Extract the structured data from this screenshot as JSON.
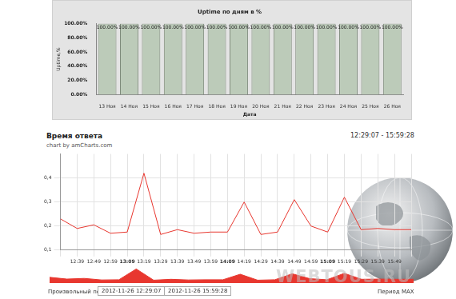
{
  "chart_data": [
    {
      "type": "bar",
      "title": "Uptime по дням в %",
      "x_label": "Дата",
      "y_label": "Uptime,%",
      "categories": [
        "13 Ноя",
        "14 Ноя",
        "15 Ноя",
        "16 Ноя",
        "17 Ноя",
        "18 Ноя",
        "19 Ноя",
        "20 Ноя",
        "21 Ноя",
        "22 Ноя",
        "23 Ноя",
        "24 Ноя",
        "25 Ноя",
        "26 Ноя"
      ],
      "values": [
        100,
        100,
        100,
        100,
        100,
        100,
        100,
        100,
        100,
        100,
        100,
        100,
        100,
        100
      ],
      "value_labels": [
        "100.00%",
        "100.00%",
        "100.00%",
        "100.00%",
        "100.00%",
        "100.00%",
        "100.00%",
        "100.00%",
        "100.00%",
        "100.00%",
        "100.00%",
        "100.00%",
        "100.00%",
        "100.00%"
      ],
      "data_labels": true,
      "color": "#bccbb9",
      "grid": false,
      "ylim": [
        0,
        100
      ],
      "yticks": [
        {
          "value": 0,
          "label": "0.00%"
        },
        {
          "value": 20,
          "label": "20.00%"
        },
        {
          "value": 40,
          "label": "40.00%"
        },
        {
          "value": 60,
          "label": "60.00%"
        },
        {
          "value": 80,
          "label": "80.00%"
        },
        {
          "value": 100,
          "label": "100.00%"
        }
      ]
    },
    {
      "type": "line",
      "title": "Время ответа",
      "subtitle": "chart by amCharts.com",
      "annotations": [
        "12:29:07 - 15:59:28"
      ],
      "categories": [
        null,
        "12:39",
        "12:49",
        "12:59",
        "13:09",
        "13:19",
        "13:29",
        "13:39",
        "13:49",
        "13:59",
        "14:09",
        "14:19",
        "14:29",
        "14:39",
        "14:49",
        "14:59",
        "15:09",
        "15:19",
        "15:29",
        "15:39",
        "15:49",
        null
      ],
      "values": [
        0.23,
        0.19,
        0.205,
        0.17,
        0.175,
        0.42,
        0.165,
        0.185,
        0.17,
        0.175,
        0.175,
        0.3,
        0.165,
        0.175,
        0.31,
        0.2,
        0.175,
        0.32,
        0.185,
        0.19,
        0.185,
        0.185
      ],
      "color": "#e8372f",
      "grid": true,
      "ylim": [
        0.1,
        0.5
      ],
      "yticks": [
        {
          "value": 0.1,
          "label": "0,1"
        },
        {
          "value": 0.2,
          "label": "0,2"
        },
        {
          "value": 0.3,
          "label": "0,3"
        },
        {
          "value": 0.4,
          "label": "0,4"
        }
      ]
    }
  ],
  "page": {
    "period_label": "Произвольный период",
    "period_from": "2012-11-26 12:29:07",
    "period_to": "2012-11-26 15:59:28",
    "period_word": "Период",
    "period_button": "MAX",
    "watermark": "WEBTOUS.RU"
  }
}
